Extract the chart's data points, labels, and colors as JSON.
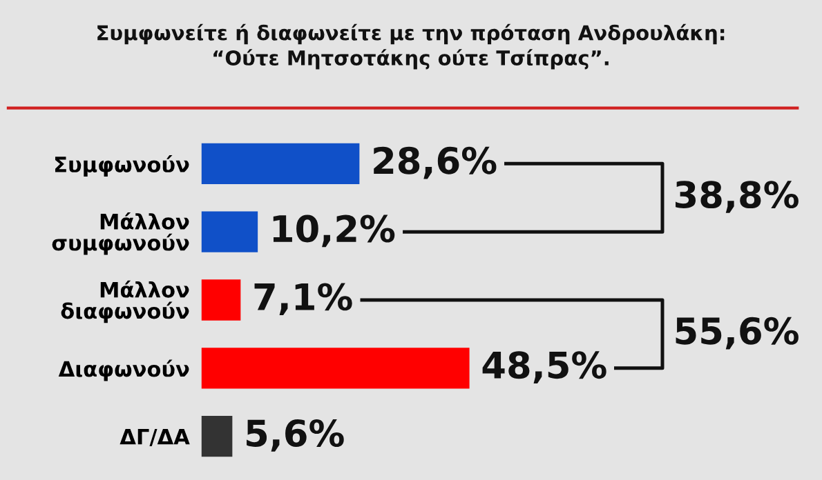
{
  "chart_data": {
    "type": "bar",
    "orientation": "horizontal",
    "title": "Συμφωνείτε ή διαφωνείτε με την πρόταση Ανδρουλάκη:\n“Ούτε Μητσοτάκης ούτε Τσίπρας”.",
    "categories": [
      "Συμφωνούν",
      "Μάλλον\nσυμφωνούν",
      "Μάλλον\nδιαφωνούν",
      "Διαφωνούν",
      "ΔΓ/ΔΑ"
    ],
    "values": [
      28.6,
      10.2,
      7.1,
      48.5,
      5.6
    ],
    "colors": [
      "#1050c8",
      "#1050c8",
      "#ff0000",
      "#ff0000",
      "#333333"
    ],
    "value_labels": [
      "28,6%",
      "10,2%",
      "7,1%",
      "48,5%",
      "5,6%"
    ],
    "annotations": [
      "38,8%",
      "55,6%"
    ],
    "grid": false,
    "legend": false
  }
}
